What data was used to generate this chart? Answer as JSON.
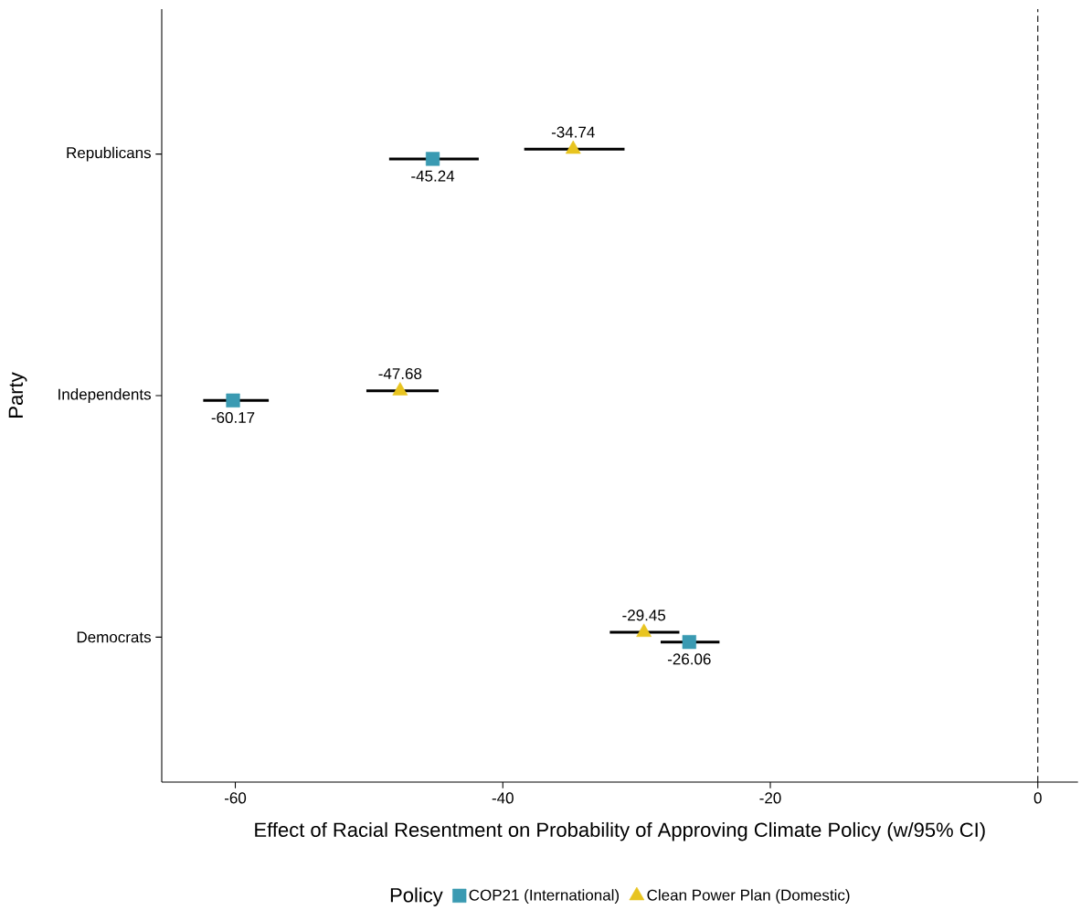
{
  "chart_data": {
    "type": "scatter",
    "orientation": "horizontal",
    "xlabel": "Effect of Racial Resentment on Probability of Approving Climate Policy (w/95% CI)",
    "ylabel": "Party",
    "legend_title": "Policy",
    "legend": "bottom",
    "categories": [
      "Republicans",
      "Independents",
      "Democrats"
    ],
    "series": [
      {
        "name": "COP21 (International)",
        "color": "#3a9ab2",
        "marker": "square",
        "values": [
          -45.24,
          -60.17,
          -26.06
        ],
        "errors": [
          [
            -48.5,
            -41.8
          ],
          [
            -62.4,
            -57.5
          ],
          [
            -28.2,
            -23.8
          ]
        ]
      },
      {
        "name": "Clean Power Plan (Domestic)",
        "color": "#e8c420",
        "marker": "triangle",
        "values": [
          -34.74,
          -47.68,
          -29.45
        ],
        "errors": [
          [
            -38.4,
            -30.9
          ],
          [
            -50.2,
            -44.8
          ],
          [
            -32.0,
            -26.8
          ]
        ]
      }
    ],
    "data_labels": true,
    "xlim": [
      -65.5,
      3
    ],
    "xticks": [
      -60,
      -40,
      -20,
      0
    ],
    "ref_lines": [
      {
        "axis": "x",
        "value": 0,
        "line_style": "dashed"
      }
    ],
    "grid": false
  }
}
